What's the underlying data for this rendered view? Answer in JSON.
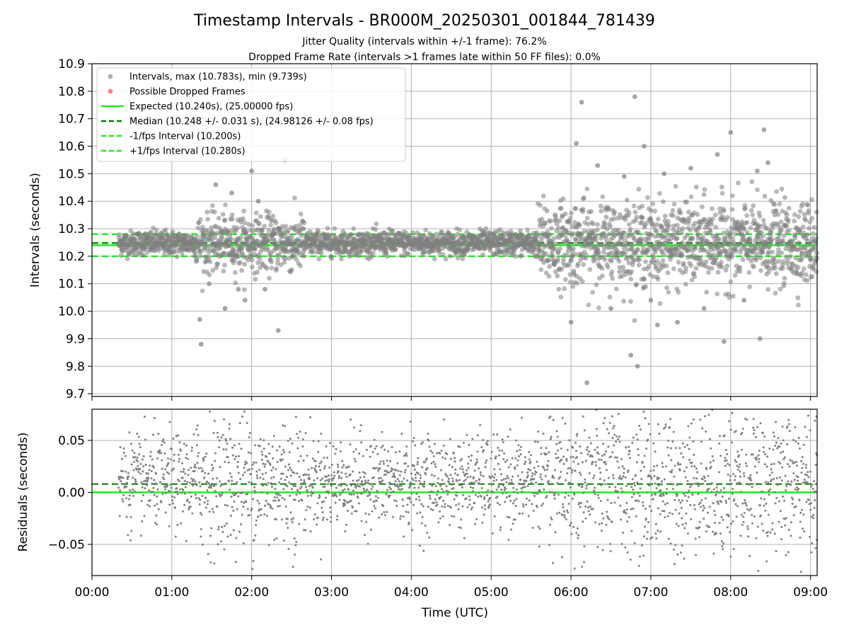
{
  "title": "Timestamp Intervals - BR000M_20250301_001844_781439",
  "subtitle_1": "Jitter Quality (intervals within +/-1 frame): 76.2%",
  "subtitle_2": "Dropped Frame Rate (intervals >1 frames late within 50 FF files): 0.0%",
  "colors": {
    "points": "#808080",
    "dropped": "#ff5050",
    "expected": "#1aee1a",
    "median": "#008000",
    "fps_bounds": "#1aee1a",
    "grid": "#b0b0b0"
  },
  "chart_data": [
    {
      "type": "scatter",
      "panel": "intervals",
      "xlabel": "",
      "ylabel": "Intervals (seconds)",
      "xlim": [
        "00:00",
        "09:05"
      ],
      "ylim": [
        9.69,
        10.9
      ],
      "yticks": [
        "9.7",
        "9.8",
        "9.9",
        "10.0",
        "10.1",
        "10.2",
        "10.3",
        "10.4",
        "10.5",
        "10.6",
        "10.7",
        "10.8",
        "10.9"
      ],
      "grid": true,
      "legend_position": "top-left",
      "legend": [
        {
          "label": "Intervals, max (10.783s), min (9.739s)",
          "kind": "marker",
          "color": "#a0a0a0"
        },
        {
          "label": "Possible Dropped Frames",
          "kind": "marker",
          "color": "#ff6b6b"
        },
        {
          "label": "Expected (10.240s), (25.00000 fps)",
          "kind": "solid",
          "color": "#1aee1a"
        },
        {
          "label": "Median (10.248 +/- 0.031 s), (24.98126 +/- 0.08 fps)",
          "kind": "dashed",
          "color": "#007a00"
        },
        {
          "label": "-1/fps Interval (10.200s)",
          "kind": "dashed",
          "color": "#1aee1a"
        },
        {
          "label": "+1/fps Interval (10.280s)",
          "kind": "dashed",
          "color": "#1aee1a"
        }
      ],
      "reference_lines": {
        "expected": 10.24,
        "median": 10.248,
        "minus_1fps": 10.2,
        "plus_1fps": 10.28
      },
      "series": [
        {
          "name": "Intervals, max (10.783s), min (9.739s)",
          "x_range": [
            "00:20",
            "09:05"
          ],
          "y_center": 10.248,
          "max": 10.783,
          "min": 9.739,
          "outliers": [
            [
              "01:21",
              9.97
            ],
            [
              "01:22",
              9.88
            ],
            [
              "01:28",
              10.1
            ],
            [
              "01:33",
              10.46
            ],
            [
              "01:40",
              10.01
            ],
            [
              "01:45",
              10.43
            ],
            [
              "01:50",
              10.08
            ],
            [
              "01:55",
              10.04
            ],
            [
              "02:00",
              10.51
            ],
            [
              "02:05",
              10.4
            ],
            [
              "02:10",
              10.08
            ],
            [
              "02:15",
              10.33
            ],
            [
              "02:20",
              9.93
            ],
            [
              "02:25",
              10.55
            ],
            [
              "02:30",
              10.15
            ],
            [
              "06:00",
              9.96
            ],
            [
              "06:04",
              10.61
            ],
            [
              "06:08",
              10.76
            ],
            [
              "06:12",
              9.74
            ],
            [
              "06:20",
              10.53
            ],
            [
              "06:30",
              10.01
            ],
            [
              "06:40",
              10.49
            ],
            [
              "06:45",
              9.84
            ],
            [
              "06:48",
              10.78
            ],
            [
              "06:50",
              9.8
            ],
            [
              "06:55",
              10.6
            ],
            [
              "07:00",
              10.04
            ],
            [
              "07:05",
              9.95
            ],
            [
              "07:10",
              10.5
            ],
            [
              "07:20",
              9.96
            ],
            [
              "07:30",
              10.52
            ],
            [
              "07:40",
              10.01
            ],
            [
              "07:50",
              10.57
            ],
            [
              "07:55",
              9.89
            ],
            [
              "08:00",
              10.65
            ],
            [
              "08:10",
              10.04
            ],
            [
              "08:20",
              10.51
            ],
            [
              "08:22",
              9.9
            ],
            [
              "08:25",
              10.66
            ],
            [
              "08:28",
              10.54
            ]
          ]
        }
      ]
    },
    {
      "type": "scatter",
      "panel": "residuals",
      "xlabel": "Time (UTC)",
      "ylabel": "Residuals (seconds)",
      "xlim": [
        "00:00",
        "09:05"
      ],
      "ylim": [
        -0.08,
        0.08
      ],
      "yticks": [
        "−0.05",
        "0.00",
        "0.05"
      ],
      "xticks": [
        "00:00",
        "01:00",
        "02:00",
        "03:00",
        "04:00",
        "05:00",
        "06:00",
        "07:00",
        "08:00",
        "09:00"
      ],
      "grid": true,
      "reference_lines": {
        "zero": 0.0,
        "median_offset": 0.008
      },
      "series": [
        {
          "name": "",
          "x_range": [
            "00:20",
            "09:05"
          ],
          "y_center": 0.01,
          "y_spread": 0.07
        }
      ]
    }
  ]
}
